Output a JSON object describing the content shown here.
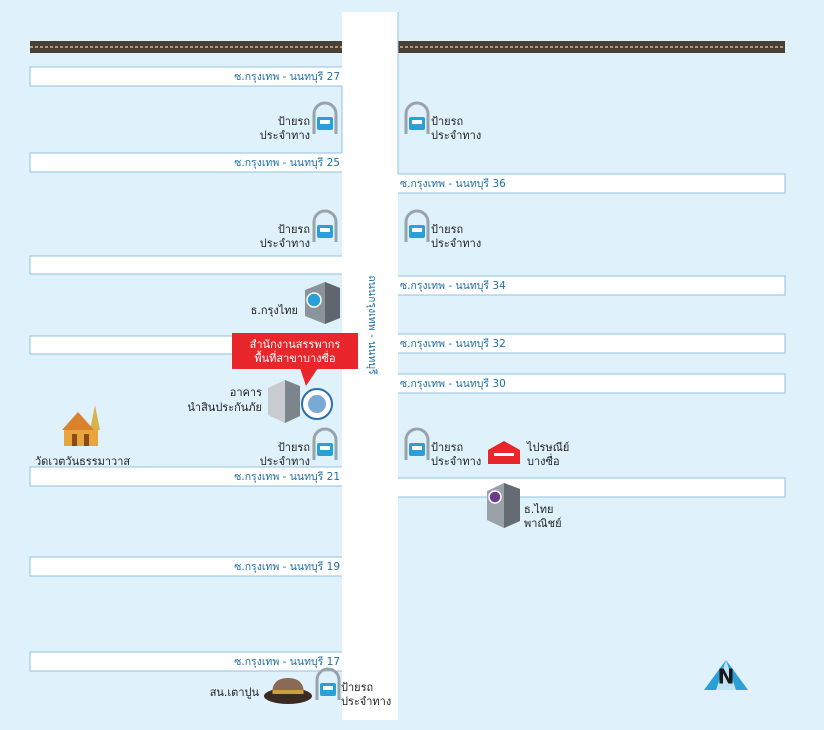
{
  "map": {
    "main_road": "ถนนกรุงเทพ - นนทบุรี",
    "sois": [
      "ซ.กรุงเทพ - นนทบุรี 27",
      "ซ.กรุงเทพ - นนทบุรี 25",
      "ซ.กรุงเทพ - นนทบุรี 36",
      "ซ.กรุงเทพ - นนทบุรี 34",
      "ซ.กรุงเทพ - นนทบุรี 32",
      "ซ.กรุงเทพ - นนทบุรี 30",
      "ซ.กรุงเทพ - นนทบุรี 21",
      "ซ.กรุงเทพ - นนทบุรี 19",
      "ซ.กรุงเทพ - นนทบุรี 17"
    ],
    "bus_stops": [
      [
        "ป้ายรถ",
        "ประจำทาง"
      ],
      [
        "ป้ายรถ",
        "ประจำทาง"
      ],
      [
        "ป้ายรถ",
        "ประจำทาง"
      ],
      [
        "ป้ายรถ",
        "ประจำทาง"
      ],
      [
        "ป้ายรถ",
        "ประจำทาง"
      ],
      [
        "ป้ายรถ",
        "ประจำทาง"
      ],
      [
        "ป้ายรถ",
        "ประจำทาง"
      ]
    ],
    "callout": [
      "สำนักงานสรรพากร",
      "พื้นที่สาขาบางซื่อ"
    ],
    "places": {
      "krungthai": "ธ.กรุงไทย",
      "building": [
        "อาคาร",
        "นำสินประกันภัย"
      ],
      "temple": "วัดเวตวันธรรมาวาส",
      "post": [
        "ไปรษณีย์",
        "บางซื่อ"
      ],
      "scb": [
        "ธ.ไทย",
        "พาณิชย์"
      ],
      "police": "สน.เตาปูน"
    },
    "north": "N"
  }
}
